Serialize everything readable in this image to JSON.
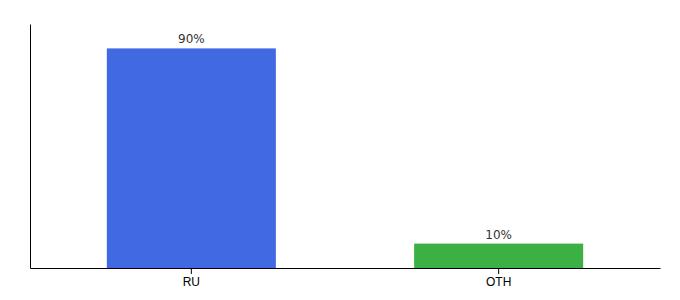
{
  "chart_data": {
    "type": "bar",
    "categories": [
      "RU",
      "OTH"
    ],
    "values": [
      90,
      10
    ],
    "value_labels": [
      "90%",
      "10%"
    ],
    "colors": [
      "#4169e1",
      "#3cb043"
    ],
    "ylim": [
      0,
      100
    ],
    "data_labels": true,
    "tick_labels": "x"
  }
}
